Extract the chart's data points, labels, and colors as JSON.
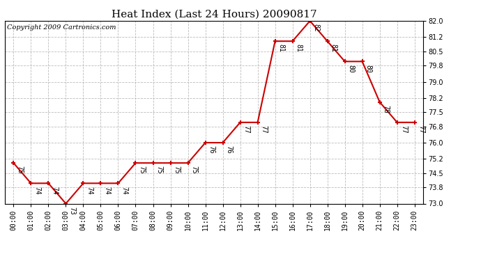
{
  "title": "Heat Index (Last 24 Hours) 20090817",
  "copyright": "Copyright 2009 Cartronics.com",
  "x_labels": [
    "00:00",
    "01:00",
    "02:00",
    "03:00",
    "04:00",
    "05:00",
    "06:00",
    "07:00",
    "08:00",
    "09:00",
    "10:00",
    "11:00",
    "12:00",
    "13:00",
    "14:00",
    "15:00",
    "16:00",
    "17:00",
    "18:00",
    "19:00",
    "20:00",
    "21:00",
    "22:00",
    "23:00"
  ],
  "y_values": [
    75,
    74,
    74,
    73,
    74,
    74,
    74,
    75,
    75,
    75,
    75,
    76,
    76,
    77,
    77,
    81,
    81,
    82,
    81,
    80,
    80,
    78,
    77,
    77
  ],
  "line_color": "#cc0000",
  "marker_color": "#cc0000",
  "bg_color": "#ffffff",
  "grid_color": "#bbbbbb",
  "ylim": [
    73.0,
    82.0
  ],
  "yticks": [
    73.0,
    73.8,
    74.5,
    75.2,
    76.0,
    76.8,
    77.5,
    78.2,
    79.0,
    79.8,
    80.5,
    81.2,
    82.0
  ],
  "title_fontsize": 11,
  "label_fontsize": 7,
  "annot_fontsize": 7,
  "copyright_fontsize": 7
}
